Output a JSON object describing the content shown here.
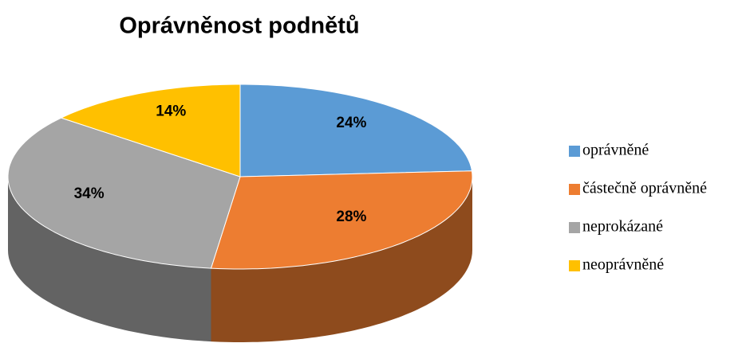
{
  "chart_data": {
    "type": "pie",
    "title": "Oprávněnost podnětů",
    "categories": [
      "oprávněné",
      "částečně oprávněné",
      "neprokázané",
      "neoprávněné"
    ],
    "values": [
      24,
      28,
      34,
      14
    ],
    "value_labels": [
      "24%",
      "28%",
      "34%",
      "14%"
    ],
    "colors": [
      "#5b9bd5",
      "#ed7d31",
      "#a5a5a5",
      "#ffc000"
    ],
    "legend": "right"
  }
}
